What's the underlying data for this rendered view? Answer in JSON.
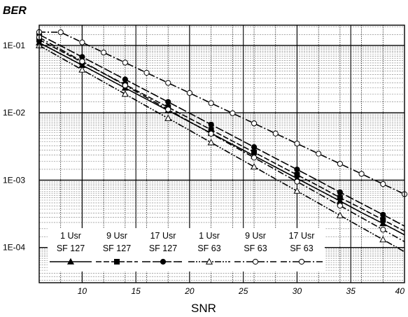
{
  "chart_data": {
    "type": "line",
    "ylabel": "BER",
    "xlabel": "SNR",
    "y_scale": "log",
    "xlim": [
      6,
      40
    ],
    "ylim": [
      3e-05,
      0.2
    ],
    "grid": true,
    "x_ticks": [
      10,
      15,
      20,
      25,
      30,
      35,
      40
    ],
    "x_tick_labels": [
      "10",
      "15",
      "20",
      "25",
      "30",
      "35",
      "40"
    ],
    "y_ticks": [
      0.1,
      0.01,
      0.001,
      0.0001
    ],
    "y_tick_labels": [
      "1E-01",
      "1E-02",
      "1E-03",
      "1E-04"
    ],
    "legend_position": "bottom-left",
    "x": [
      6,
      8,
      10,
      12,
      14,
      16,
      18,
      20,
      22,
      24,
      26,
      28,
      30,
      32,
      34,
      36,
      38,
      40
    ],
    "series": [
      {
        "name": "1 Usr SF 127",
        "legend_line1": "1 Usr",
        "legend_line2": "SF 127",
        "style": "solid",
        "marker": "triangle",
        "values": [
          0.11,
          0.075,
          0.051,
          0.0345,
          0.0234,
          0.0159,
          0.0108,
          0.00733,
          0.00498,
          0.00339,
          0.0023,
          0.00156,
          0.00106,
          0.00072,
          0.00049,
          0.00033,
          0.000227,
          0.000154
        ]
      },
      {
        "name": "9 Usr SF 127",
        "legend_line1": "9 Usr",
        "legend_line2": "SF 127",
        "style": "dashed",
        "marker": "square",
        "values": [
          0.122,
          0.083,
          0.0565,
          0.0385,
          0.0262,
          0.0178,
          0.0121,
          0.00825,
          0.0056,
          0.0038,
          0.0026,
          0.00176,
          0.0012,
          0.00082,
          0.00055,
          0.00038,
          0.000257,
          0.000175
        ]
      },
      {
        "name": "17 Usr SF 127",
        "legend_line1": "17 Usr",
        "legend_line2": "SF 127",
        "style": "longdash",
        "marker": "circle",
        "values": [
          0.145,
          0.099,
          0.0675,
          0.046,
          0.0313,
          0.0213,
          0.0145,
          0.00987,
          0.0067,
          0.00457,
          0.0031,
          0.00211,
          0.00144,
          0.00098,
          0.00066,
          0.00045,
          0.000307,
          0.000208
        ]
      },
      {
        "name": "1 Usr SF 63",
        "legend_line1": "1 Usr",
        "legend_line2": "SF 63",
        "style": "dashdotdot",
        "marker": "triangle-open",
        "values": [
          0.1,
          0.066,
          0.0435,
          0.0287,
          0.019,
          0.0125,
          0.0083,
          0.0055,
          0.00362,
          0.00239,
          0.00158,
          0.00104,
          0.00069,
          0.000455,
          0.0003,
          0.000198,
          0.000131,
          8.65e-05
        ]
      },
      {
        "name": "9 Usr SF 63",
        "legend_line1": "9 Usr",
        "legend_line2": "SF 63",
        "style": "dashdot",
        "marker": "circle-open",
        "values": [
          0.132,
          0.0875,
          0.058,
          0.0385,
          0.0255,
          0.0169,
          0.0112,
          0.0074,
          0.0049,
          0.00325,
          0.00216,
          0.00143,
          0.00095,
          0.00063,
          0.000418,
          0.000277,
          0.000184,
          0.000122
        ]
      },
      {
        "name": "17 Usr SF 63",
        "legend_line1": "17 Usr",
        "legend_line2": "SF 63",
        "style": "dashdot",
        "marker": "circle-open",
        "values": [
          0.158,
          0.157,
          0.111,
          0.0785,
          0.0556,
          0.0393,
          0.0278,
          0.0197,
          0.0139,
          0.00985,
          0.00697,
          0.00493,
          0.00349,
          0.00247,
          0.00175,
          0.00124,
          0.000875,
          0.000619
        ]
      }
    ]
  }
}
